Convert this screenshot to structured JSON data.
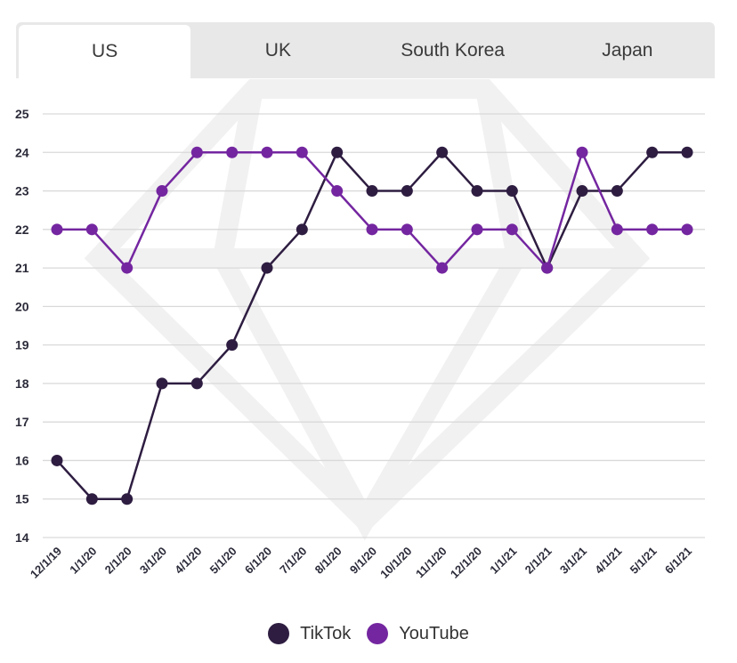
{
  "tabs": [
    {
      "label": "US",
      "active": true
    },
    {
      "label": "UK",
      "active": false
    },
    {
      "label": "South Korea",
      "active": false
    },
    {
      "label": "Japan",
      "active": false
    }
  ],
  "colors": {
    "tiktok": "#2e1d41",
    "youtube": "#7426a0",
    "grid": "#d9d9d9",
    "axis_text": "#2b2b3a"
  },
  "chart_data": {
    "type": "line",
    "title": "",
    "xlabel": "",
    "ylabel": "",
    "ylim": [
      14,
      25
    ],
    "yticks": [
      14,
      15,
      16,
      17,
      18,
      19,
      20,
      21,
      22,
      23,
      24,
      25
    ],
    "x": [
      "12/1/19",
      "1/1/20",
      "2/1/20",
      "3/1/20",
      "4/1/20",
      "5/1/20",
      "6/1/20",
      "7/1/20",
      "8/1/20",
      "9/1/20",
      "10/1/20",
      "11/1/20",
      "12/1/20",
      "1/1/21",
      "2/1/21",
      "3/1/21",
      "4/1/21",
      "5/1/21",
      "6/1/21"
    ],
    "series": [
      {
        "name": "TikTok",
        "values": [
          16,
          15,
          15,
          18,
          18,
          19,
          21,
          22,
          24,
          23,
          23,
          24,
          23,
          23,
          21,
          23,
          23,
          24,
          24
        ]
      },
      {
        "name": "YouTube",
        "values": [
          22,
          22,
          21,
          23,
          24,
          24,
          24,
          24,
          23,
          22,
          22,
          21,
          22,
          22,
          21,
          24,
          22,
          22,
          22
        ]
      }
    ],
    "legend": "bottom-center",
    "grid": true
  }
}
